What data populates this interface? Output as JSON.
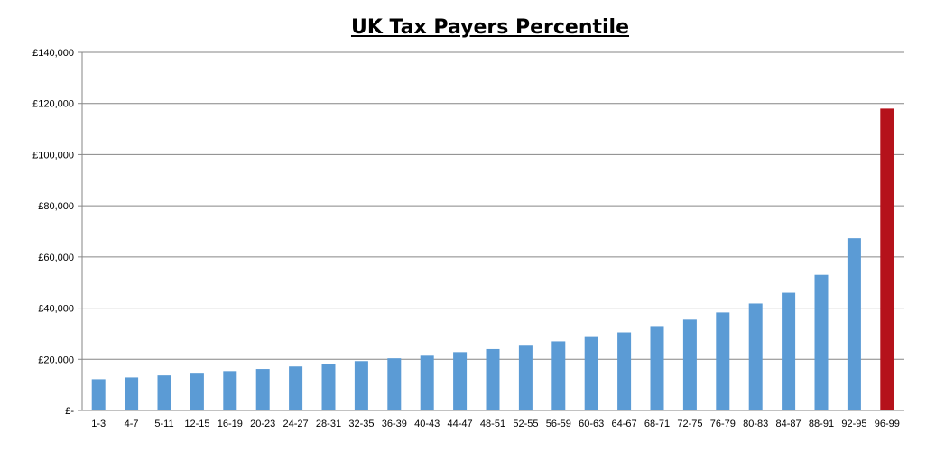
{
  "chart_data": {
    "type": "bar",
    "title": "UK Tax Payers Percentile",
    "xlabel": "",
    "ylabel": "",
    "ylim": [
      0,
      140000
    ],
    "yticks": [
      0,
      20000,
      40000,
      60000,
      80000,
      100000,
      120000,
      140000
    ],
    "ytick_labels": [
      "£-",
      "£20,000",
      "£40,000",
      "£60,000",
      "£80,000",
      "£100,000",
      "£120,000",
      "£140,000"
    ],
    "grid": true,
    "legend": "none",
    "colors": {
      "default": "#5b9bd5",
      "highlight": "#b5121b",
      "grid": "#868686"
    },
    "highlight_index": 24,
    "categories": [
      "1-3",
      "4-7",
      "5-11",
      "12-15",
      "16-19",
      "20-23",
      "24-27",
      "28-31",
      "32-35",
      "36-39",
      "40-43",
      "44-47",
      "48-51",
      "52-55",
      "56-59",
      "60-63",
      "64-67",
      "68-71",
      "72-75",
      "76-79",
      "80-83",
      "84-87",
      "88-91",
      "92-95",
      "96-99"
    ],
    "values": [
      12200,
      12900,
      13700,
      14400,
      15400,
      16200,
      17200,
      18200,
      19300,
      20400,
      21400,
      22800,
      24000,
      25300,
      27000,
      28700,
      30500,
      33000,
      35500,
      38300,
      41800,
      46000,
      53000,
      67300,
      118000
    ]
  }
}
